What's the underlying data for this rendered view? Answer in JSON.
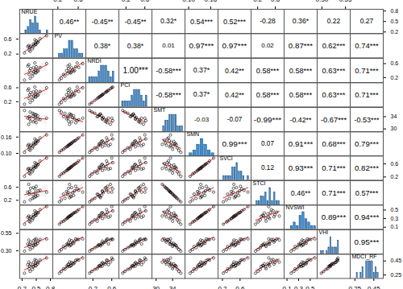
{
  "chart_data": {
    "type": "scatter_matrix",
    "variables": [
      {
        "name": "NRUE",
        "values": [
          0.35,
          0.38,
          0.49,
          0.37,
          0.5,
          0.36,
          0.48,
          0.34,
          0.58,
          0.42,
          0.53,
          0.32,
          0.25,
          0.47,
          0.49,
          0.44,
          0.72,
          0.43,
          0.54,
          0.45
        ],
        "lim": [
          0.15,
          0.85
        ],
        "ticks": [
          0.2,
          0.5,
          0.8
        ]
      },
      {
        "name": "PV",
        "values": [
          0.31,
          0.41,
          0.46,
          0.27,
          0.55,
          0.37,
          0.49,
          0.43,
          0.61,
          0.34,
          0.51,
          0.4,
          0.23,
          0.58,
          0.45,
          0.47,
          0.69,
          0.39,
          0.53,
          0.43
        ],
        "lim": [
          0.1,
          0.75
        ],
        "ticks": [
          0.2,
          0.6
        ]
      },
      {
        "name": "NRDI",
        "values": [
          0.29,
          0.46,
          0.35,
          0.18,
          0.51,
          0.4,
          0.42,
          0.57,
          0.49,
          0.24,
          0.38,
          0.53,
          0.13,
          0.62,
          0.33,
          0.48,
          0.6,
          0.31,
          0.4,
          0.36
        ],
        "lim": [
          0.05,
          0.75
        ],
        "ticks": [
          0.2,
          0.6
        ]
      },
      {
        "name": "PCI",
        "values": [
          0.29,
          0.46,
          0.35,
          0.18,
          0.51,
          0.4,
          0.42,
          0.57,
          0.49,
          0.24,
          0.38,
          0.53,
          0.13,
          0.62,
          0.33,
          0.48,
          0.6,
          0.31,
          0.4,
          0.36
        ],
        "lim": [
          0.05,
          0.75
        ],
        "ticks": [
          0.2,
          0.6
        ]
      },
      {
        "name": "SMT",
        "values": [
          34.0,
          32.5,
          34.7,
          35.5,
          32.0,
          33.3,
          33.7,
          31.5,
          33.0,
          35.1,
          34.3,
          33.5,
          36.0,
          32.7,
          34.5,
          32.3,
          33.5,
          34.1,
          33.2,
          34.9
        ],
        "lim": [
          29,
          37
        ],
        "ticks": [
          30,
          34
        ]
      },
      {
        "name": "SMN",
        "values": [
          0.115,
          0.13,
          0.136,
          0.111,
          0.148,
          0.124,
          0.141,
          0.133,
          0.157,
          0.12,
          0.144,
          0.128,
          0.104,
          0.153,
          0.135,
          0.138,
          0.168,
          0.126,
          0.146,
          0.132
        ],
        "lim": [
          0.09,
          0.18
        ],
        "ticks": [
          {
            "value": 0.1,
            "label": "0.10"
          },
          0.16
        ]
      },
      {
        "name": "SVCI",
        "values": [
          0.32,
          0.45,
          0.5,
          0.29,
          0.61,
          0.4,
          0.54,
          0.46,
          0.69,
          0.36,
          0.57,
          0.44,
          0.22,
          0.64,
          0.5,
          0.52,
          0.78,
          0.41,
          0.59,
          0.47
        ],
        "lim": [
          0.1,
          0.85
        ],
        "ticks": [
          0.2,
          0.6
        ]
      },
      {
        "name": "STCI",
        "values": [
          0.39,
          0.57,
          0.31,
          0.21,
          0.63,
          0.47,
          0.43,
          0.69,
          0.51,
          0.26,
          0.35,
          0.45,
          0.15,
          0.55,
          0.33,
          0.59,
          0.45,
          0.38,
          0.49,
          0.28
        ],
        "lim": [
          0.05,
          0.8
        ],
        "ticks": [
          0.2,
          0.6
        ]
      },
      {
        "name": "NVSWI",
        "values": [
          0.24,
          0.34,
          0.38,
          0.22,
          0.45,
          0.3,
          0.41,
          0.36,
          0.51,
          0.27,
          0.43,
          0.33,
          0.17,
          0.48,
          0.37,
          0.39,
          0.58,
          0.31,
          0.44,
          0.35
        ],
        "lim": [
          0.05,
          0.62
        ],
        "ticks": [
          0.1,
          0.3,
          0.5
        ]
      },
      {
        "name": "VHI",
        "values": [
          0.362,
          0.424,
          0.384,
          0.318,
          0.47,
          0.394,
          0.416,
          0.454,
          0.462,
          0.344,
          0.406,
          0.398,
          0.294,
          0.462,
          0.386,
          0.444,
          0.47,
          0.38,
          0.438,
          0.37
        ],
        "lim": [
          0.25,
          0.6
        ],
        "ticks": [
          {
            "value": 0.3,
            "label": "0.30"
          },
          0.55
        ]
      },
      {
        "name": "MDCI_RF",
        "values": [
          0.339,
          0.405,
          0.384,
          0.301,
          0.458,
          0.377,
          0.413,
          0.434,
          0.464,
          0.331,
          0.408,
          0.397,
          0.275,
          0.47,
          0.382,
          0.429,
          0.493,
          0.365,
          0.429,
          0.372
        ],
        "lim": [
          0.2,
          0.55
        ],
        "ticks": [
          0.25,
          0.45
        ]
      }
    ],
    "correlations": [
      {
        "y": "NRUE",
        "x": "PV",
        "value": 0.46,
        "label": "0.46**"
      },
      {
        "y": "NRUE",
        "x": "NRDI",
        "value": -0.45,
        "label": "-0.45**"
      },
      {
        "y": "NRUE",
        "x": "PCI",
        "value": -0.45,
        "label": "-0.45**"
      },
      {
        "y": "NRUE",
        "x": "SMT",
        "value": 0.32,
        "label": "0.32*"
      },
      {
        "y": "NRUE",
        "x": "SMN",
        "value": 0.54,
        "label": "0.54***"
      },
      {
        "y": "NRUE",
        "x": "SVCI",
        "value": 0.52,
        "label": "0.52***"
      },
      {
        "y": "NRUE",
        "x": "STCI",
        "value": -0.28,
        "label": "-0.28"
      },
      {
        "y": "NRUE",
        "x": "NVSWI",
        "value": 0.36,
        "label": "0.36*"
      },
      {
        "y": "NRUE",
        "x": "VHI",
        "value": 0.22,
        "label": "0.22"
      },
      {
        "y": "NRUE",
        "x": "MDCI_RF",
        "value": 0.27,
        "label": "0.27"
      },
      {
        "y": "PV",
        "x": "NRDI",
        "value": 0.38,
        "label": "0.38*"
      },
      {
        "y": "PV",
        "x": "PCI",
        "value": 0.38,
        "label": "0.38*"
      },
      {
        "y": "PV",
        "x": "SMT",
        "value": 0.01,
        "label": "0.01"
      },
      {
        "y": "PV",
        "x": "SMN",
        "value": 0.97,
        "label": "0.97***"
      },
      {
        "y": "PV",
        "x": "SVCI",
        "value": 0.97,
        "label": "0.97***"
      },
      {
        "y": "PV",
        "x": "STCI",
        "value": 0.02,
        "label": "0.02"
      },
      {
        "y": "PV",
        "x": "NVSWI",
        "value": 0.87,
        "label": "0.87***"
      },
      {
        "y": "PV",
        "x": "VHI",
        "value": 0.62,
        "label": "0.62***"
      },
      {
        "y": "PV",
        "x": "MDCI_RF",
        "value": 0.74,
        "label": "0.74***"
      },
      {
        "y": "NRDI",
        "x": "PCI",
        "value": 1.0,
        "label": "1.00***"
      },
      {
        "y": "NRDI",
        "x": "SMT",
        "value": -0.58,
        "label": "-0.58***"
      },
      {
        "y": "NRDI",
        "x": "SMN",
        "value": 0.37,
        "label": "0.37*"
      },
      {
        "y": "NRDI",
        "x": "SVCI",
        "value": 0.42,
        "label": "0.42**"
      },
      {
        "y": "NRDI",
        "x": "STCI",
        "value": 0.58,
        "label": "0.58***"
      },
      {
        "y": "NRDI",
        "x": "NVSWI",
        "value": 0.58,
        "label": "0.58***"
      },
      {
        "y": "NRDI",
        "x": "VHI",
        "value": 0.63,
        "label": "0.63***"
      },
      {
        "y": "NRDI",
        "x": "MDCI_RF",
        "value": 0.71,
        "label": "0.71***"
      },
      {
        "y": "PCI",
        "x": "SMT",
        "value": -0.58,
        "label": "-0.58***"
      },
      {
        "y": "PCI",
        "x": "SMN",
        "value": 0.37,
        "label": "0.37*"
      },
      {
        "y": "PCI",
        "x": "SVCI",
        "value": 0.42,
        "label": "0.42**"
      },
      {
        "y": "PCI",
        "x": "STCI",
        "value": 0.58,
        "label": "0.58***"
      },
      {
        "y": "PCI",
        "x": "NVSWI",
        "value": 0.58,
        "label": "0.58***"
      },
      {
        "y": "PCI",
        "x": "VHI",
        "value": 0.63,
        "label": "0.63***"
      },
      {
        "y": "PCI",
        "x": "MDCI_RF",
        "value": 0.71,
        "label": "0.71***"
      },
      {
        "y": "SMT",
        "x": "SMN",
        "value": -0.03,
        "label": "-0.03"
      },
      {
        "y": "SMT",
        "x": "SVCI",
        "value": -0.07,
        "label": "-0.07"
      },
      {
        "y": "SMT",
        "x": "STCI",
        "value": -0.99,
        "label": "-0.99***"
      },
      {
        "y": "SMT",
        "x": "NVSWI",
        "value": -0.42,
        "label": "-0.42**"
      },
      {
        "y": "SMT",
        "x": "VHI",
        "value": -0.67,
        "label": "-0.67***"
      },
      {
        "y": "SMT",
        "x": "MDCI_RF",
        "value": -0.53,
        "label": "-0.53***"
      },
      {
        "y": "SMN",
        "x": "SVCI",
        "value": 0.99,
        "label": "0.99***"
      },
      {
        "y": "SMN",
        "x": "STCI",
        "value": 0.07,
        "label": "0.07"
      },
      {
        "y": "SMN",
        "x": "NVSWI",
        "value": 0.91,
        "label": "0.91***"
      },
      {
        "y": "SMN",
        "x": "VHI",
        "value": 0.68,
        "label": "0.68***"
      },
      {
        "y": "SMN",
        "x": "MDCI_RF",
        "value": 0.79,
        "label": "0.79***"
      },
      {
        "y": "SVCI",
        "x": "STCI",
        "value": 0.12,
        "label": "0.12"
      },
      {
        "y": "SVCI",
        "x": "NVSWI",
        "value": 0.93,
        "label": "0.93***"
      },
      {
        "y": "SVCI",
        "x": "VHI",
        "value": 0.71,
        "label": "0.71***"
      },
      {
        "y": "SVCI",
        "x": "MDCI_RF",
        "value": 0.82,
        "label": "0.82***"
      },
      {
        "y": "STCI",
        "x": "NVSWI",
        "value": 0.46,
        "label": "0.46**"
      },
      {
        "y": "STCI",
        "x": "VHI",
        "value": 0.71,
        "label": "0.71***"
      },
      {
        "y": "STCI",
        "x": "MDCI_RF",
        "value": 0.57,
        "label": "0.57***"
      },
      {
        "y": "NVSWI",
        "x": "VHI",
        "value": 0.89,
        "label": "0.89***"
      },
      {
        "y": "NVSWI",
        "x": "MDCI_RF",
        "value": 0.94,
        "label": "0.94***"
      },
      {
        "y": "VHI",
        "x": "MDCI_RF",
        "value": 0.95,
        "label": "0.95***"
      }
    ]
  }
}
